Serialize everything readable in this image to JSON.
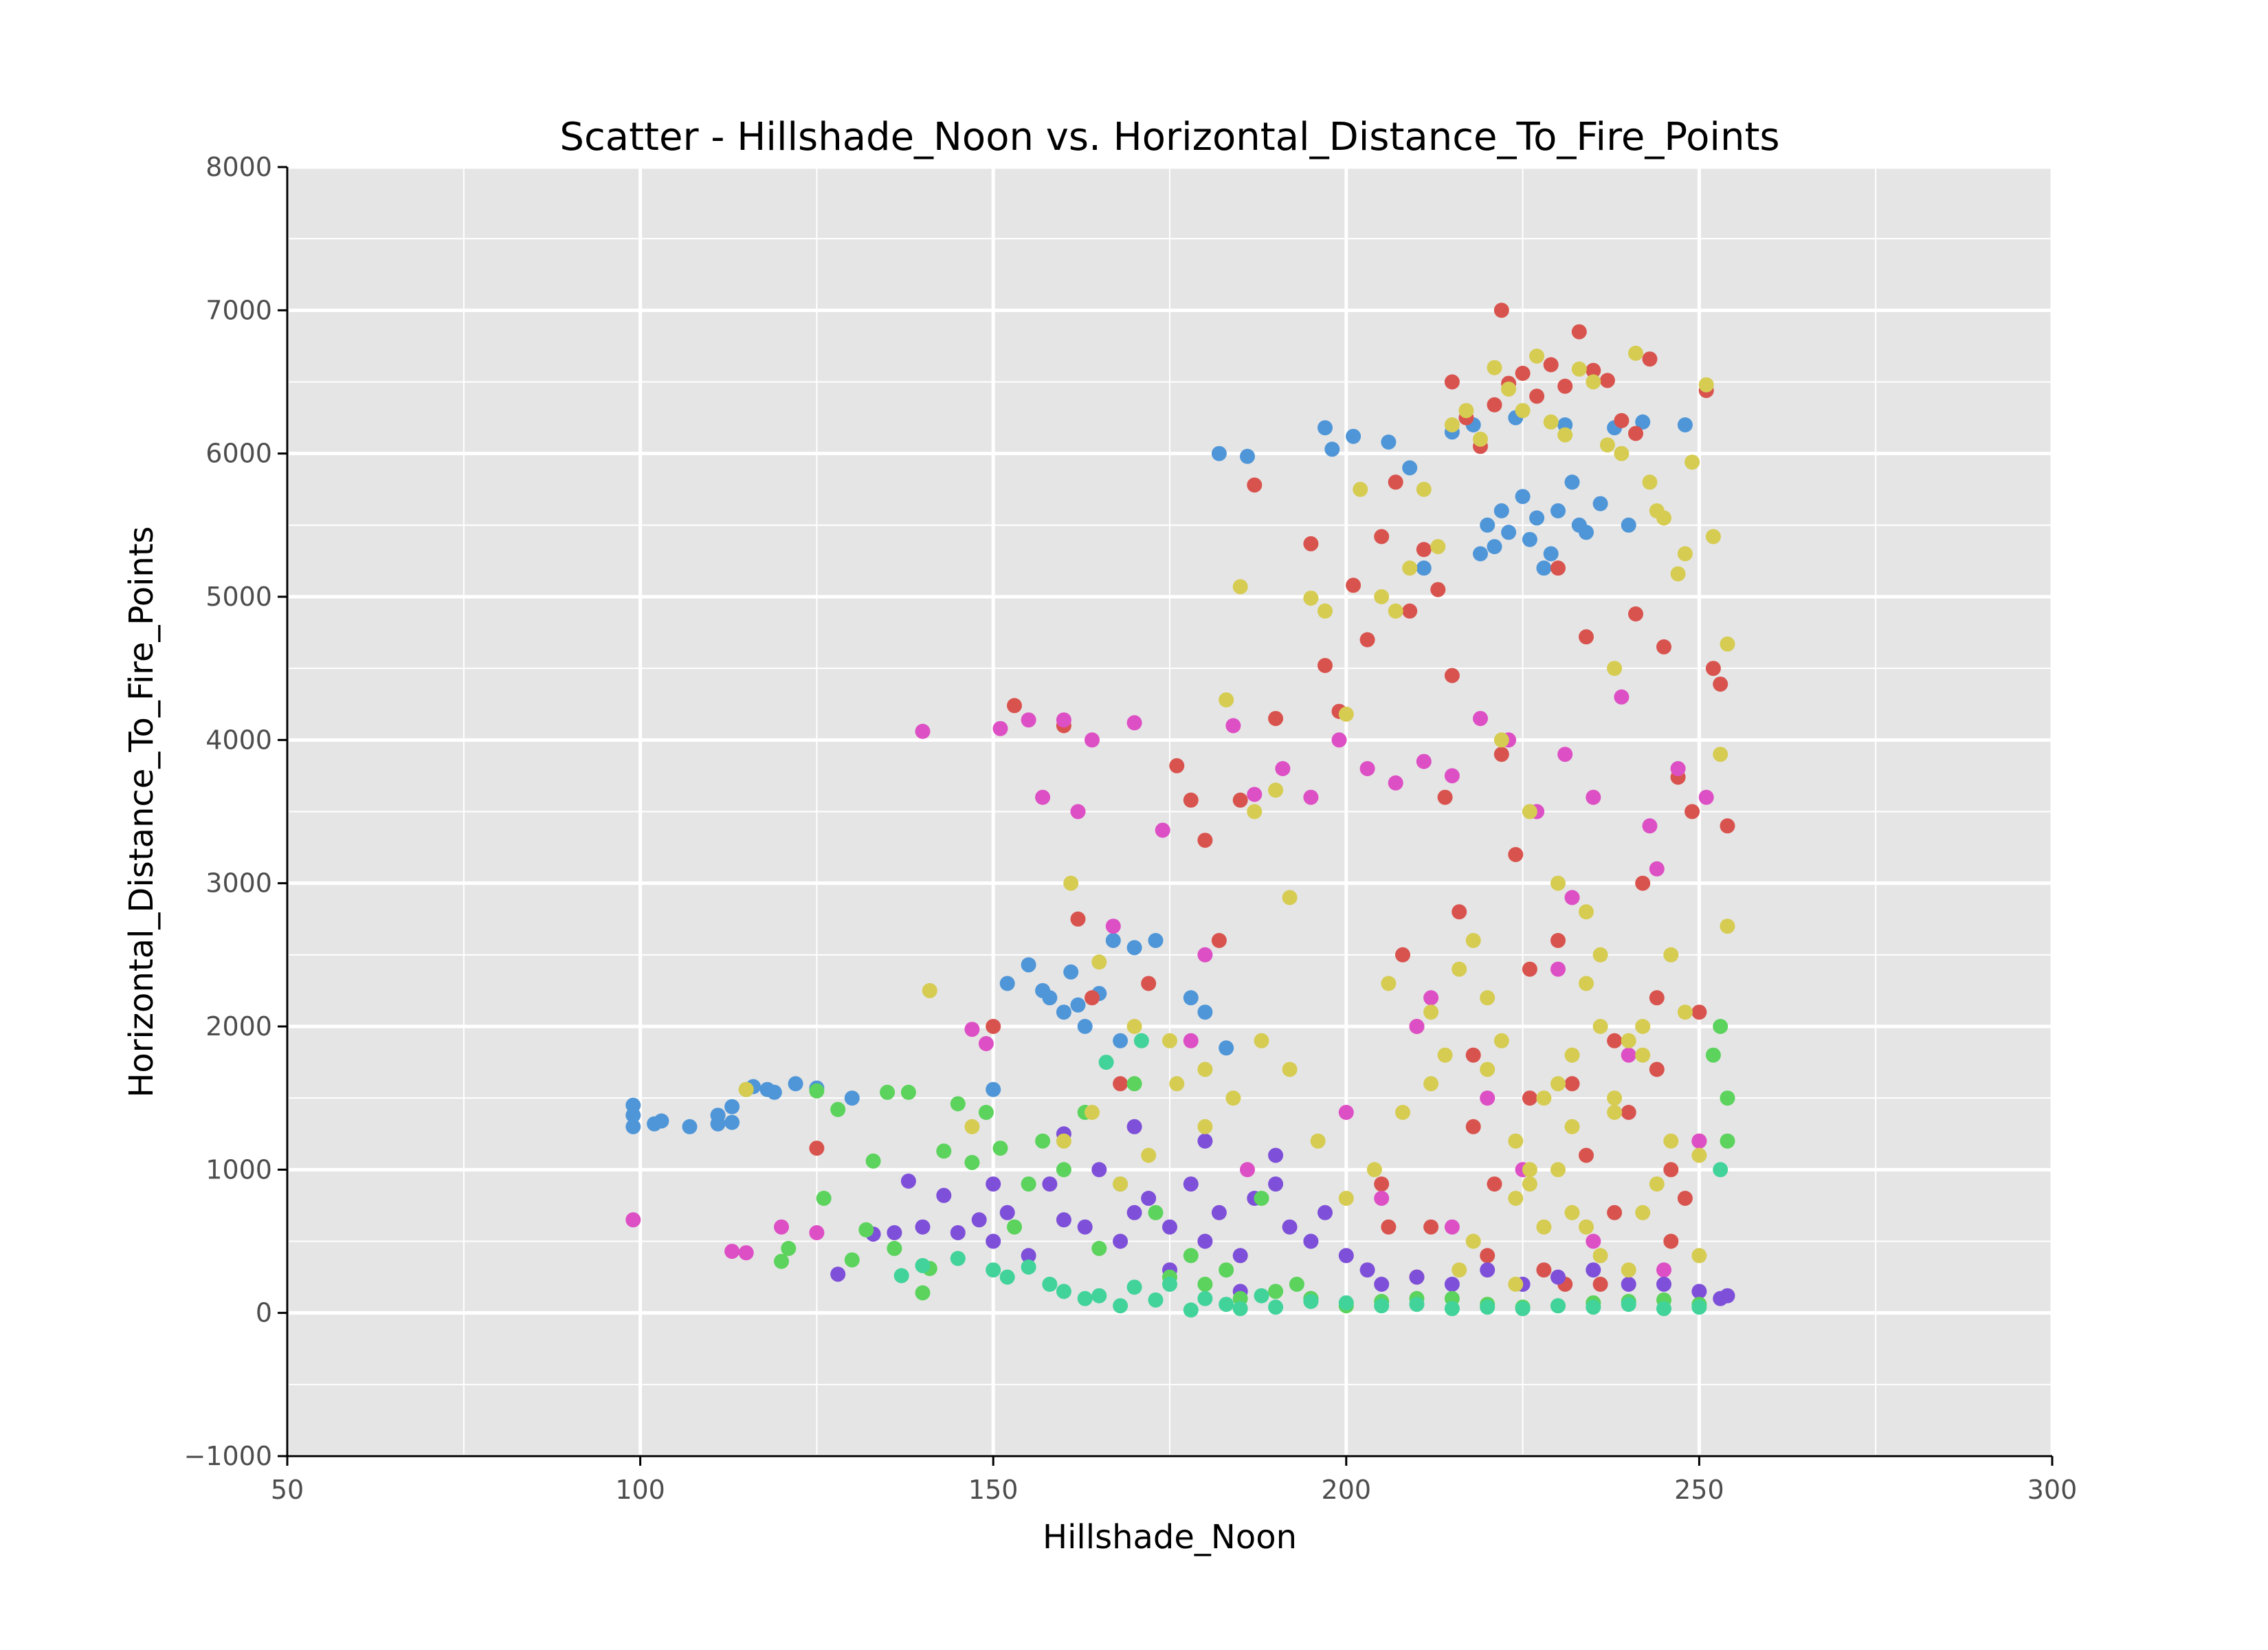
{
  "chart_data": {
    "type": "scatter",
    "title": "Scatter - Hillshade_Noon vs. Horizontal_Distance_To_Fire_Points",
    "xlabel": "Hillshade_Noon",
    "ylabel": "Horizontal_Distance_To_Fire_Points",
    "xlim": [
      50,
      300
    ],
    "ylim": [
      -1000,
      8000
    ],
    "x_ticks": [
      50,
      100,
      150,
      200,
      250,
      300
    ],
    "x_tick_labels": [
      "50",
      "100",
      "150",
      "200",
      "250",
      "300"
    ],
    "y_ticks": [
      -1000,
      0,
      1000,
      2000,
      3000,
      4000,
      5000,
      6000,
      7000,
      8000
    ],
    "y_tick_labels": [
      "−1000",
      "0",
      "1000",
      "2000",
      "3000",
      "4000",
      "5000",
      "6000",
      "7000",
      "8000"
    ],
    "grid": true,
    "legend": "none",
    "panel_color": "#e5e5e5",
    "grid_color": "#ffffff",
    "series": [
      {
        "color": "#4f96d8",
        "x": [
          99,
          99,
          99,
          102,
          103,
          107,
          111,
          111,
          113,
          113,
          116,
          118,
          119,
          122,
          125,
          130,
          150,
          152,
          155,
          157,
          158,
          160,
          161,
          162,
          163,
          165,
          167,
          168,
          170,
          173,
          178,
          180,
          182,
          183,
          186,
          197,
          198,
          201,
          206,
          209,
          211,
          215,
          218,
          219,
          220,
          221,
          222,
          223,
          224,
          225,
          226,
          227,
          228,
          229,
          230,
          231,
          232,
          233,
          234,
          236,
          238,
          240,
          242,
          248
        ],
        "y": [
          1450,
          1380,
          1300,
          1320,
          1340,
          1300,
          1380,
          1320,
          1440,
          1330,
          1580,
          1560,
          1540,
          1600,
          1570,
          1500,
          1560,
          2300,
          2430,
          2250,
          2200,
          2100,
          2380,
          2150,
          2000,
          2230,
          2600,
          1900,
          2550,
          2600,
          2200,
          2100,
          6000,
          1850,
          5980,
          6180,
          6030,
          6120,
          6080,
          5900,
          5200,
          6150,
          6200,
          5300,
          5500,
          5350,
          5600,
          5450,
          6250,
          5700,
          5400,
          5550,
          5200,
          5300,
          5600,
          6200,
          5800,
          5500,
          5450,
          5650,
          6180,
          5500,
          6220,
          6200
        ]
      },
      {
        "color": "#d9534e",
        "x": [
          125,
          150,
          153,
          160,
          162,
          164,
          168,
          172,
          176,
          178,
          180,
          182,
          185,
          187,
          190,
          195,
          197,
          199,
          201,
          203,
          205,
          207,
          209,
          211,
          213,
          215,
          217,
          219,
          221,
          223,
          225,
          227,
          229,
          231,
          233,
          235,
          237,
          239,
          241,
          243,
          245,
          247,
          249,
          251,
          252,
          253,
          254,
          222,
          215,
          230,
          234,
          241,
          210,
          218,
          226,
          232,
          238,
          244,
          250,
          205,
          212,
          220,
          228,
          236,
          246,
          208,
          216,
          224,
          240,
          248,
          214,
          222,
          230,
          238,
          246,
          210,
          226,
          234,
          242,
          218,
          250,
          206,
          244,
          221,
          231
        ],
        "y": [
          1150,
          2000,
          4240,
          4100,
          2750,
          2200,
          1600,
          2300,
          3820,
          3580,
          3300,
          2600,
          3580,
          5780,
          4150,
          5370,
          4520,
          4200,
          5080,
          4700,
          5420,
          5800,
          4900,
          5330,
          5050,
          6500,
          6250,
          6050,
          6340,
          6490,
          6560,
          6400,
          6620,
          6470,
          6850,
          6580,
          6510,
          6230,
          6140,
          6660,
          4650,
          3740,
          3500,
          6440,
          4500,
          4390,
          3400,
          7000,
          4450,
          5200,
          4720,
          4880,
          2000,
          1800,
          1500,
          1600,
          1900,
          2200,
          1200,
          900,
          600,
          400,
          300,
          200,
          1000,
          2500,
          2800,
          3200,
          1400,
          800,
          3600,
          3900,
          2600,
          700,
          500,
          250,
          2400,
          1100,
          3000,
          1300,
          2100,
          600,
          1700,
          900,
          200
        ]
      },
      {
        "color": "#dd4fc4",
        "x": [
          99,
          113,
          115,
          120,
          125,
          140,
          147,
          149,
          151,
          155,
          157,
          160,
          162,
          164,
          167,
          170,
          174,
          180,
          184,
          187,
          191,
          195,
          199,
          203,
          207,
          211,
          215,
          219,
          223,
          227,
          231,
          235,
          239,
          243,
          247,
          251,
          210,
          220,
          230,
          240,
          250,
          205,
          215,
          225,
          235,
          245,
          200,
          212,
          232,
          244,
          178,
          186
        ],
        "y": [
          650,
          430,
          420,
          600,
          560,
          4060,
          1980,
          1880,
          4080,
          4140,
          3600,
          4140,
          3500,
          4000,
          2700,
          4120,
          3370,
          2500,
          4100,
          3620,
          3800,
          3600,
          4000,
          3800,
          3700,
          3850,
          3750,
          4150,
          4000,
          3500,
          3900,
          3600,
          4300,
          3400,
          3800,
          3600,
          2000,
          1500,
          2400,
          1800,
          1200,
          800,
          600,
          1000,
          500,
          300,
          1400,
          2200,
          2900,
          3100,
          1900,
          1000
        ]
      },
      {
        "color": "#7e4fd8",
        "x": [
          128,
          133,
          136,
          138,
          140,
          143,
          145,
          148,
          150,
          152,
          155,
          158,
          160,
          163,
          165,
          168,
          170,
          172,
          175,
          178,
          180,
          182,
          185,
          187,
          190,
          192,
          195,
          197,
          200,
          203,
          205,
          210,
          215,
          220,
          225,
          230,
          235,
          240,
          245,
          250,
          253,
          254,
          170,
          180,
          190,
          160,
          150,
          175,
          185,
          195
        ],
        "y": [
          270,
          550,
          560,
          920,
          600,
          820,
          560,
          650,
          500,
          700,
          400,
          900,
          650,
          600,
          1000,
          500,
          700,
          800,
          600,
          900,
          500,
          700,
          400,
          800,
          900,
          600,
          500,
          700,
          400,
          300,
          200,
          250,
          200,
          300,
          200,
          250,
          300,
          200,
          200,
          150,
          100,
          120,
          1300,
          1200,
          1100,
          1250,
          900,
          300,
          150,
          100
        ]
      },
      {
        "color": "#5bd35c",
        "x": [
          115,
          120,
          121,
          125,
          126,
          128,
          130,
          132,
          133,
          135,
          136,
          138,
          140,
          141,
          143,
          145,
          147,
          149,
          151,
          153,
          155,
          157,
          160,
          163,
          165,
          168,
          170,
          173,
          175,
          178,
          180,
          183,
          185,
          188,
          190,
          193,
          195,
          200,
          205,
          210,
          215,
          220,
          225,
          230,
          235,
          240,
          245,
          250,
          253,
          254,
          254,
          252
        ],
        "y": [
          1560,
          360,
          450,
          1550,
          800,
          1420,
          370,
          580,
          1060,
          1540,
          450,
          1540,
          140,
          310,
          1130,
          1460,
          1050,
          1400,
          1150,
          600,
          900,
          1200,
          1000,
          1400,
          450,
          900,
          1600,
          700,
          250,
          400,
          200,
          300,
          100,
          800,
          150,
          200,
          100,
          50,
          80,
          100,
          100,
          60,
          40,
          50,
          70,
          80,
          90,
          60,
          2000,
          1500,
          1200,
          1800
        ]
      },
      {
        "color": "#41d39a",
        "x": [
          137,
          140,
          145,
          150,
          152,
          155,
          158,
          160,
          163,
          165,
          168,
          170,
          173,
          175,
          178,
          180,
          183,
          185,
          188,
          190,
          195,
          200,
          205,
          210,
          215,
          220,
          225,
          230,
          235,
          240,
          245,
          250,
          253,
          171,
          166
        ],
        "y": [
          260,
          330,
          380,
          300,
          250,
          320,
          200,
          150,
          100,
          120,
          50,
          180,
          90,
          200,
          20,
          100,
          60,
          30,
          120,
          40,
          80,
          70,
          50,
          60,
          30,
          40,
          30,
          50,
          40,
          60,
          30,
          40,
          1000,
          1900,
          1750
        ]
      },
      {
        "color": "#d6cc52",
        "x": [
          115,
          141,
          147,
          161,
          165,
          170,
          175,
          180,
          183,
          185,
          187,
          190,
          192,
          195,
          197,
          200,
          202,
          205,
          207,
          209,
          211,
          213,
          215,
          217,
          219,
          221,
          223,
          225,
          227,
          229,
          231,
          233,
          235,
          237,
          239,
          241,
          243,
          245,
          247,
          249,
          251,
          253,
          254,
          254,
          222,
          226,
          230,
          234,
          238,
          228,
          232,
          236,
          224,
          220,
          216,
          212,
          208,
          204,
          200,
          196,
          192,
          188,
          184,
          180,
          176,
          172,
          168,
          164,
          160,
          244,
          248,
          252,
          218,
          222,
          226,
          230,
          234,
          238,
          242,
          246,
          250,
          224,
          228,
          232,
          236,
          240,
          244,
          212,
          220,
          232,
          240,
          248,
          206,
          214,
          236,
          242,
          226,
          218,
          230,
          234,
          238,
          242,
          246,
          250,
          216,
          224
        ],
        "y": [
          1560,
          2250,
          1300,
          3000,
          2450,
          2000,
          1900,
          1700,
          4280,
          5070,
          3500,
          3650,
          2900,
          4990,
          4900,
          4180,
          5750,
          5000,
          4900,
          5200,
          5750,
          5350,
          6200,
          6300,
          6100,
          6600,
          6450,
          6300,
          6680,
          6220,
          6130,
          6590,
          6500,
          6060,
          6000,
          6700,
          5800,
          5550,
          5160,
          5940,
          6480,
          3900,
          4670,
          2700,
          4000,
          3500,
          3000,
          2800,
          4500,
          1500,
          1800,
          2000,
          1200,
          2200,
          2400,
          1600,
          1400,
          1000,
          800,
          1200,
          1700,
          1900,
          1500,
          1300,
          1600,
          1100,
          900,
          1400,
          1200,
          5600,
          5300,
          5420,
          2600,
          1900,
          1000,
          1600,
          2300,
          1400,
          1800,
          2500,
          1100,
          800,
          600,
          700,
          400,
          300,
          900,
          2100,
          1700,
          1300,
          1900,
          2100,
          2300,
          1800,
          2500,
          2000,
          900,
          500,
          1000,
          600,
          1500,
          700,
          1200,
          400,
          300,
          200
        ]
      }
    ]
  }
}
